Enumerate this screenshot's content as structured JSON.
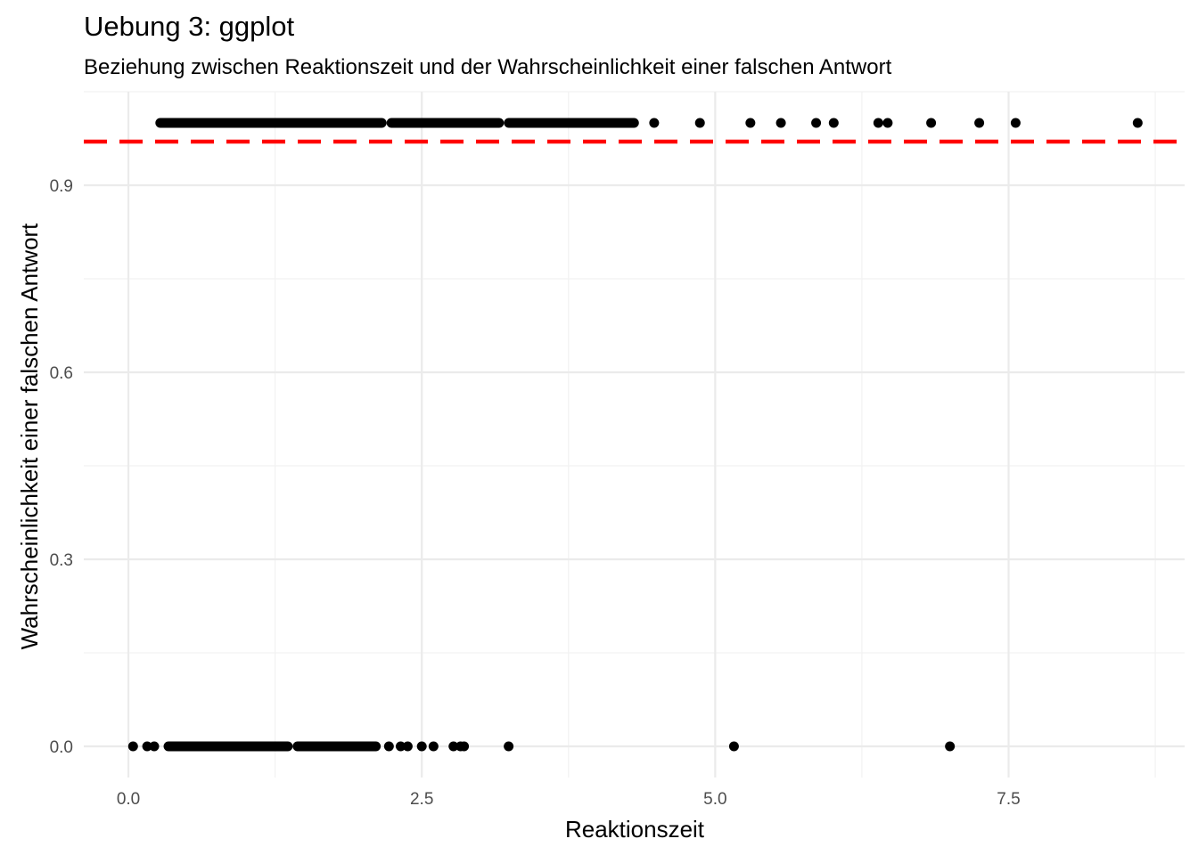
{
  "chart_data": {
    "type": "scatter",
    "title": "Uebung 3: ggplot",
    "subtitle": "Beziehung zwischen Reaktionszeit und der Wahrscheinlichkeit einer falschen Antwort",
    "xlabel": "Reaktionszeit",
    "ylabel": "Wahrscheinlichkeit einer falschen Antwort",
    "xlim": [
      -0.38,
      9.0
    ],
    "ylim": [
      -0.05,
      1.05
    ],
    "x_ticks": [
      {
        "value": 0.0,
        "label": "0.0"
      },
      {
        "value": 2.5,
        "label": "2.5"
      },
      {
        "value": 5.0,
        "label": "5.0"
      },
      {
        "value": 7.5,
        "label": "7.5"
      }
    ],
    "y_ticks": [
      {
        "value": 0.0,
        "label": "0.0"
      },
      {
        "value": 0.3,
        "label": "0.3"
      },
      {
        "value": 0.6,
        "label": "0.6"
      },
      {
        "value": 0.9,
        "label": "0.9"
      }
    ],
    "x_minor": [
      1.25,
      3.75,
      6.25,
      8.75
    ],
    "y_minor": [
      0.15,
      0.45,
      0.75,
      1.05
    ],
    "grid": true,
    "reference_line": {
      "orientation": "horizontal",
      "y": 0.97,
      "color": "#ff0000",
      "style": "dashed"
    },
    "point_color": "#000000",
    "series": [
      {
        "y": 1,
        "dense_ranges": [
          [
            0.23,
            2.2
          ],
          [
            2.2,
            3.2
          ],
          [
            3.2,
            4.35
          ]
        ],
        "x": [
          4.48,
          4.87,
          5.3,
          5.56,
          5.86,
          6.01,
          6.39,
          6.47,
          6.84,
          7.25,
          7.56,
          8.6
        ]
      },
      {
        "y": 0,
        "dense_ranges": [
          [
            0.3,
            1.4
          ],
          [
            1.4,
            2.15
          ]
        ],
        "x": [
          0.04,
          0.16,
          0.22,
          2.22,
          2.32,
          2.38,
          2.5,
          2.6,
          2.77,
          2.83,
          2.86,
          3.24,
          5.16,
          7.0
        ]
      }
    ]
  }
}
